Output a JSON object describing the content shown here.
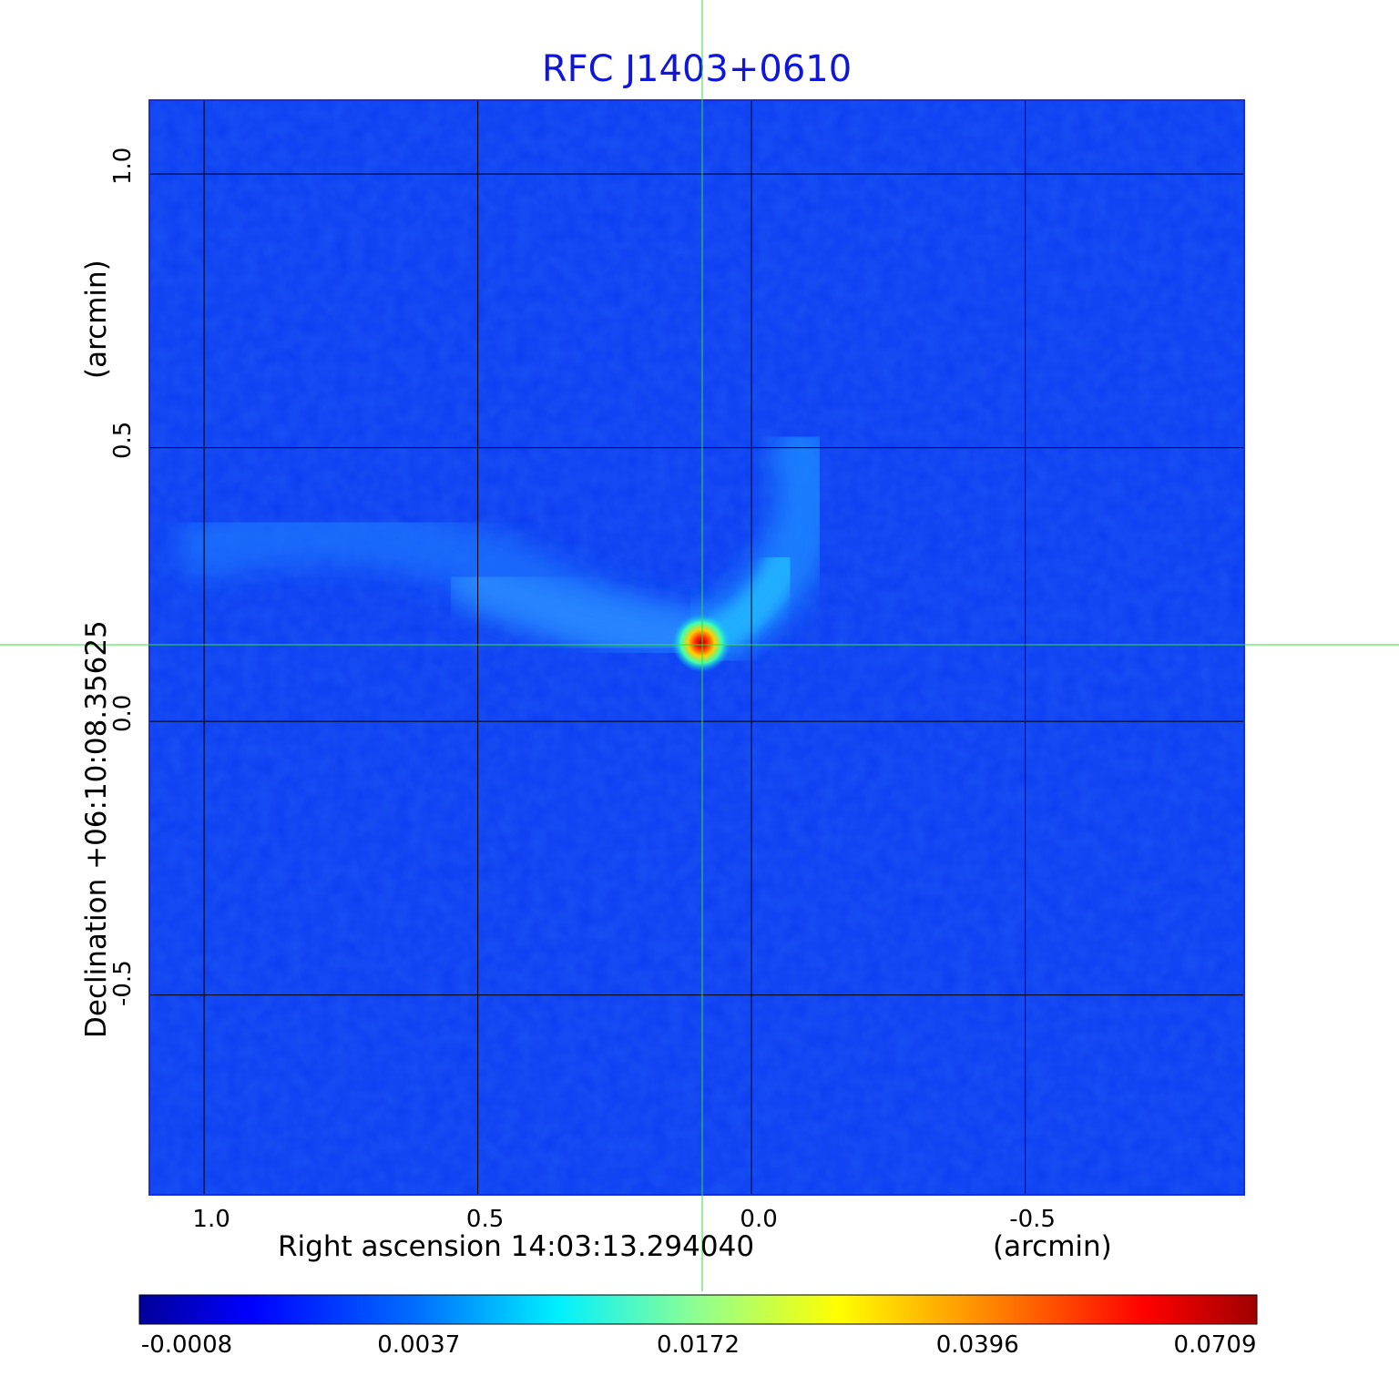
{
  "title": "RFC J1403+0610",
  "x_axis": {
    "label": "Right ascension  14:03:13.294040",
    "unit": "(arcmin)",
    "ticks": [
      "1.0",
      "0.5",
      "0.0",
      "-0.5"
    ],
    "tick_values": [
      1.0,
      0.5,
      0.0,
      -0.5
    ],
    "range": [
      1.1,
      -0.9
    ]
  },
  "y_axis": {
    "label": "Declination  +06:10:08.35625",
    "unit": "(arcmin)",
    "ticks": [
      "1.0",
      "0.5",
      "0.0",
      "-0.5"
    ],
    "tick_values": [
      1.0,
      0.5,
      0.0,
      -0.5
    ],
    "range": [
      -0.865,
      1.135
    ]
  },
  "colorbar": {
    "colormap": "jet",
    "ticks": [
      "-0.0008",
      "0.0037",
      "0.0172",
      "0.0396",
      "0.0709"
    ]
  },
  "source": {
    "ra_offset": 0.09,
    "dec_offset": 0.14
  },
  "colors": {
    "title": "#0f16d8",
    "crosshair": "#32e232",
    "grid": "#000000",
    "background_map": "#0b3cf2"
  }
}
